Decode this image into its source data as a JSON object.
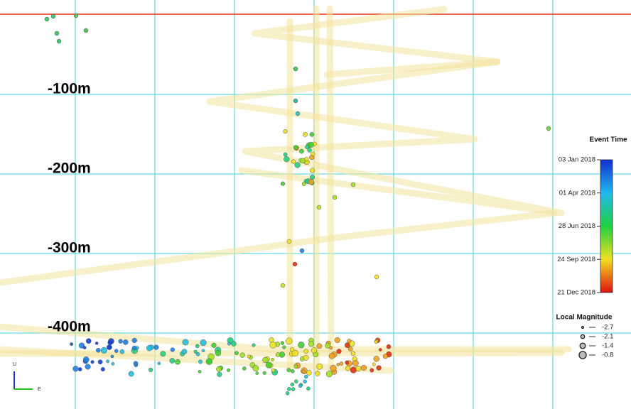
{
  "depth_labels": [
    "-100m",
    "-200m",
    "-300m",
    "-400m"
  ],
  "event_time_legend": {
    "title": "Event Time",
    "ticks": [
      "03 Jan 2018",
      "01 Apr 2018",
      "28 Jun 2018",
      "24 Sep 2018",
      "21 Dec 2018"
    ]
  },
  "magnitude_legend": {
    "title": "Local Magnitude",
    "entries": [
      "-2.7",
      "-2.1",
      "-1.4",
      "-0.8"
    ]
  },
  "axes_indicator": {
    "vertical": "U",
    "horizontal": "E"
  }
}
